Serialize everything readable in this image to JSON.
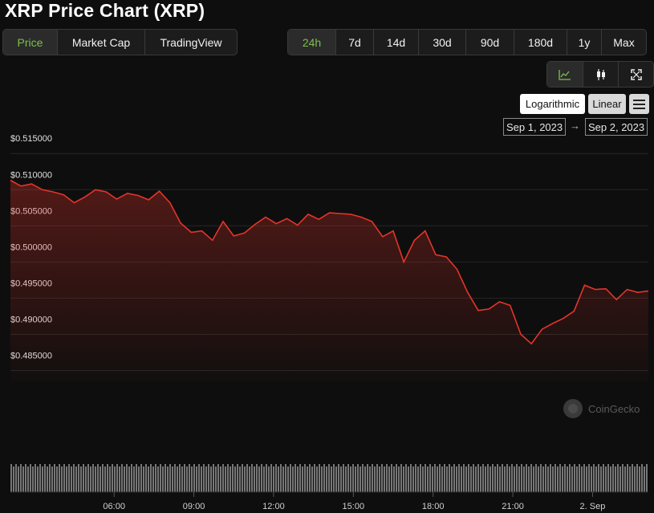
{
  "title": "XRP Price Chart (XRP)",
  "view_tabs": [
    {
      "label": "Price",
      "active": true
    },
    {
      "label": "Market Cap",
      "active": false
    },
    {
      "label": "TradingView",
      "active": false
    }
  ],
  "ranges": [
    {
      "label": "24h",
      "active": true
    },
    {
      "label": "7d",
      "active": false
    },
    {
      "label": "14d",
      "active": false
    },
    {
      "label": "30d",
      "active": false
    },
    {
      "label": "90d",
      "active": false
    },
    {
      "label": "180d",
      "active": false
    },
    {
      "label": "1y",
      "active": false
    },
    {
      "label": "Max",
      "active": false
    }
  ],
  "chart_type_icons": [
    "line-chart-icon",
    "candlestick-icon",
    "fullscreen-icon"
  ],
  "scale": {
    "logarithmic": "Logarithmic",
    "linear": "Linear",
    "selected": "Linear"
  },
  "date_range": {
    "from": "Sep 1, 2023",
    "arrow": "→",
    "to": "Sep 2, 2023"
  },
  "watermark": "CoinGecko",
  "colors": {
    "line": "#e5342a",
    "active_tab": "#7fbf4d",
    "volume": "#8a8a8a"
  },
  "chart_data": {
    "type": "area",
    "series": [
      {
        "name": "XRP"
      }
    ],
    "xlim_hours": [
      2.1,
      26.1
    ],
    "x_ticks": [
      {
        "hour": 6,
        "label": "06:00"
      },
      {
        "hour": 9,
        "label": "09:00"
      },
      {
        "hour": 12,
        "label": "12:00"
      },
      {
        "hour": 15,
        "label": "15:00"
      },
      {
        "hour": 18,
        "label": "18:00"
      },
      {
        "hour": 21,
        "label": "21:00"
      },
      {
        "hour": 24,
        "label": "2. Sep"
      }
    ],
    "y_ticks": [
      {
        "value": 0.515,
        "label": "$0.515000"
      },
      {
        "value": 0.51,
        "label": "$0.510000"
      },
      {
        "value": 0.505,
        "label": "$0.505000"
      },
      {
        "value": 0.5,
        "label": "$0.500000"
      },
      {
        "value": 0.495,
        "label": "$0.495000"
      },
      {
        "value": 0.49,
        "label": "$0.490000"
      },
      {
        "value": 0.485,
        "label": "$0.485000"
      }
    ],
    "ylim": [
      0.4835,
      0.5168
    ],
    "grid": true,
    "x": [
      2.1,
      2.5,
      2.9,
      3.3,
      3.7,
      4.1,
      4.5,
      4.9,
      5.3,
      5.7,
      6.1,
      6.5,
      6.9,
      7.3,
      7.7,
      8.1,
      8.5,
      8.9,
      9.3,
      9.7,
      10.1,
      10.5,
      10.9,
      11.3,
      11.7,
      12.1,
      12.5,
      12.9,
      13.3,
      13.7,
      14.1,
      14.5,
      14.9,
      15.3,
      15.7,
      16.1,
      16.5,
      16.9,
      17.3,
      17.7,
      18.1,
      18.5,
      18.9,
      19.3,
      19.7,
      20.1,
      20.5,
      20.9,
      21.3,
      21.7,
      22.1,
      22.5,
      22.9,
      23.3,
      23.7,
      24.1,
      24.5,
      24.9,
      25.3,
      25.7,
      26.1
    ],
    "values": [
      0.5113,
      0.5105,
      0.5108,
      0.51,
      0.5097,
      0.5093,
      0.5082,
      0.509,
      0.51,
      0.5097,
      0.5087,
      0.5095,
      0.5092,
      0.5086,
      0.5098,
      0.5082,
      0.5054,
      0.5041,
      0.5043,
      0.503,
      0.5056,
      0.5036,
      0.504,
      0.5052,
      0.5062,
      0.5053,
      0.506,
      0.5051,
      0.5066,
      0.5059,
      0.5068,
      0.5067,
      0.5066,
      0.5062,
      0.5056,
      0.5035,
      0.5043,
      0.5,
      0.503,
      0.5043,
      0.501,
      0.5007,
      0.499,
      0.4958,
      0.4933,
      0.4935,
      0.4945,
      0.494,
      0.49,
      0.4887,
      0.4907,
      0.4915,
      0.4922,
      0.4932,
      0.4968,
      0.4962,
      0.4963,
      0.4948,
      0.4962,
      0.4958,
      0.496
    ],
    "volume_note": "volume bars at bottom (no scale shown)"
  }
}
